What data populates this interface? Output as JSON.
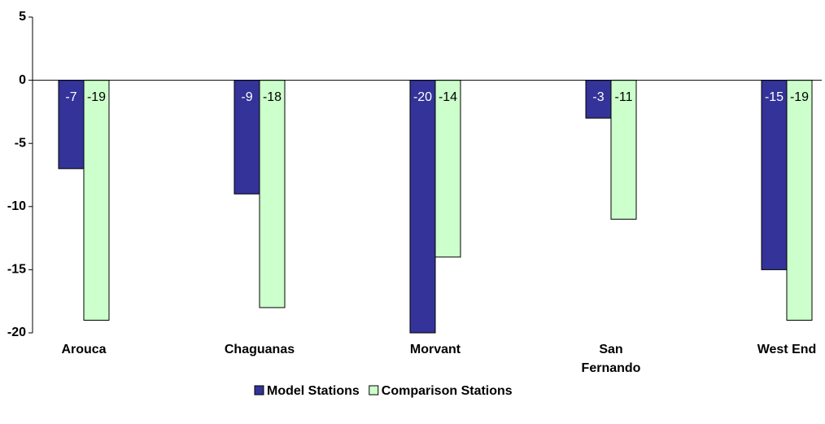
{
  "chart_data": {
    "type": "bar",
    "categories": [
      "Arouca",
      "Chaguanas",
      "Morvant",
      "San Fernando",
      "West End"
    ],
    "series": [
      {
        "name": "Model Stations",
        "color": "#333399",
        "values": [
          -7,
          -9,
          -20,
          -3,
          -15
        ]
      },
      {
        "name": "Comparison Stations",
        "color": "#ccffcc",
        "values": [
          -19,
          -18,
          -14,
          -11,
          -19
        ]
      }
    ],
    "ylim": [
      -20,
      5
    ],
    "yticks": [
      5,
      0,
      -5,
      -10,
      -15,
      -20
    ],
    "grid": false,
    "legend": "bottom"
  }
}
